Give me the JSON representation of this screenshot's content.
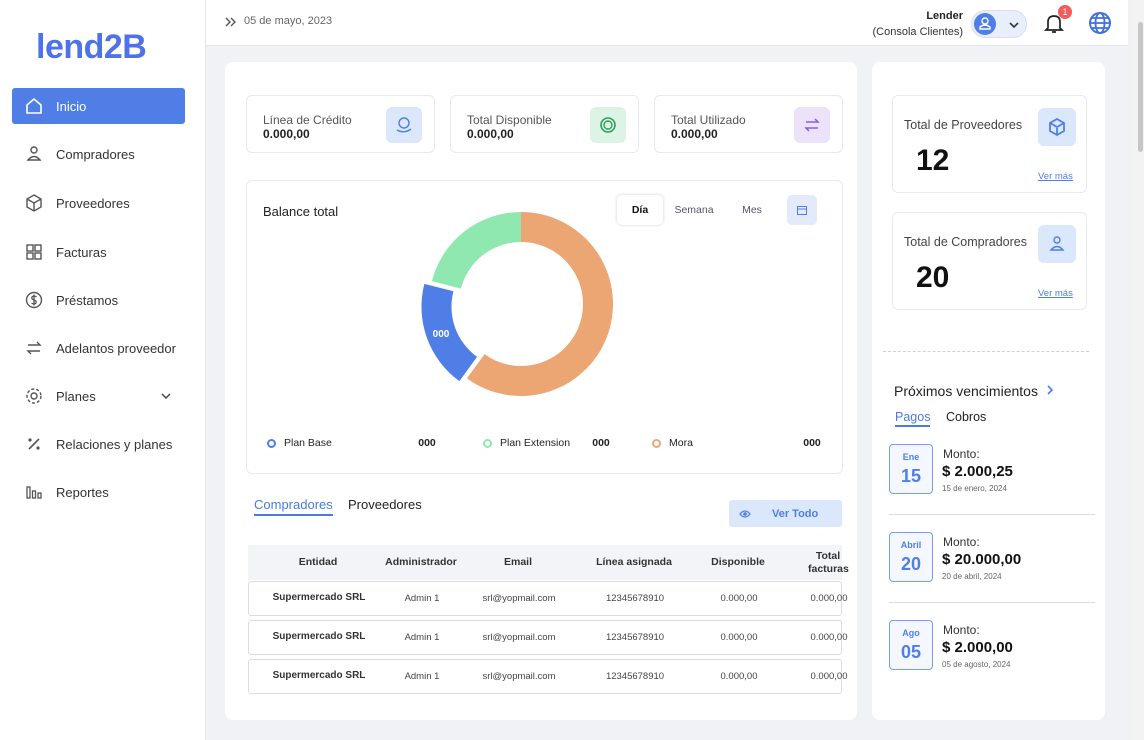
{
  "sidebar": {
    "logo": "lend2B",
    "items": [
      "Inicio",
      "Compradores",
      "Proveedores",
      "Facturas",
      "Préstamos",
      "Adelantos proveedor",
      "Planes",
      "Relaciones y planes",
      "Reportes"
    ]
  },
  "topbar": {
    "date": "05 de mayo, 2023",
    "user": "Lender",
    "role": "(Consola Clientes)",
    "notifications": 1
  },
  "stats": [
    {
      "label": "Línea de Crédito",
      "value": "0.000,00"
    },
    {
      "label": "Total Disponible",
      "value": "0.000,00"
    },
    {
      "label": "Total Utilizado",
      "value": "0.000,00"
    }
  ],
  "balance": {
    "title": "Balance total",
    "periods": [
      "Día",
      "Semana",
      "Mes"
    ],
    "segments": [
      {
        "name": "Plan Base",
        "amount": "000",
        "share": 19,
        "color": "#4f7fe6"
      },
      {
        "name": "Plan Extension",
        "amount": "000",
        "share": 21,
        "color": "#8ee8b0"
      },
      {
        "name": "Mora",
        "amount": "000",
        "share": 60,
        "color": "#eca673"
      }
    ]
  },
  "tabs": [
    "Compradores",
    "Proveedores"
  ],
  "view_all": "Ver Todo",
  "table": {
    "columns": [
      "Entidad",
      "Administrador",
      "Email",
      "Línea asignada",
      "Disponible",
      "Total facturas"
    ],
    "rows": [
      [
        "Supermercado SRL",
        "Admin 1",
        "srl@yopmail.com",
        "12345678910",
        "0.000,00",
        "0.000,00"
      ],
      [
        "Supermercado SRL",
        "Admin 1",
        "srl@yopmail.com",
        "12345678910",
        "0.000,00",
        "0.000,00"
      ],
      [
        "Supermercado SRL",
        "Admin 1",
        "srl@yopmail.com",
        "12345678910",
        "0.000,00",
        "0.000,00"
      ]
    ]
  },
  "summary": [
    {
      "label": "Total de Proveedores",
      "count": 12,
      "link": "Ver más"
    },
    {
      "label": "Total de Compradores",
      "count": 20,
      "link": "Ver más"
    }
  ],
  "due": {
    "title": "Próximos vencimientos",
    "tabs": [
      "Pagos",
      "Cobros"
    ],
    "items": [
      {
        "month": "Ene",
        "day": "15",
        "label": "Monto:",
        "amount": "$ 2.000,25",
        "date": "15 de enero, 2024"
      },
      {
        "month": "Abril",
        "day": "20",
        "label": "Monto:",
        "amount": "$ 20.000,00",
        "date": "20 de abril, 2024"
      },
      {
        "month": "Ago",
        "day": "05",
        "label": "Monto:",
        "amount": "$ 2.000,00",
        "date": "05 de agosto, 2024"
      }
    ]
  }
}
